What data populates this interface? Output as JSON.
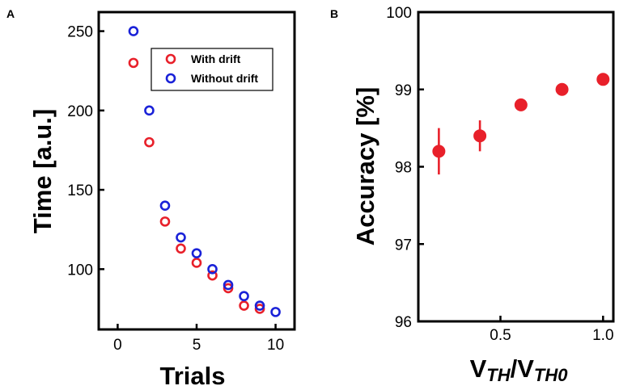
{
  "chart_data": [
    {
      "panel": "A",
      "type": "scatter",
      "title": "",
      "xlabel": "Trials",
      "ylabel": "Time [a.u.]",
      "xlim": [
        -1.2,
        11.2
      ],
      "ylim": [
        62,
        262
      ],
      "xticks": [
        0,
        5,
        10
      ],
      "xtick_labels": [
        "0",
        "5",
        "10"
      ],
      "yticks": [
        100,
        150,
        200,
        250
      ],
      "ytick_labels": [
        "100",
        "150",
        "200",
        "250"
      ],
      "grid": false,
      "legend_position": "top-right",
      "series": [
        {
          "name": "With drift",
          "color": "#e8202a",
          "marker": "open-circle",
          "x": [
            1,
            2,
            3,
            4,
            5,
            6,
            7,
            8,
            9
          ],
          "y": [
            230,
            180,
            130,
            113,
            104,
            96,
            88,
            77,
            75
          ]
        },
        {
          "name": "Without drift",
          "color": "#1a22d8",
          "marker": "open-circle",
          "x": [
            1,
            2,
            3,
            4,
            5,
            6,
            7,
            8,
            9,
            10
          ],
          "y": [
            250,
            200,
            140,
            120,
            110,
            100,
            90,
            83,
            77,
            73
          ]
        }
      ]
    },
    {
      "panel": "B",
      "type": "scatter",
      "title": "",
      "xlabel": "V_TH/V_TH0",
      "xlabel_parts": {
        "v1": "V",
        "sub1": "TH",
        "slash": "/V",
        "sub2": "TH0"
      },
      "ylabel": "Accuracy [%]",
      "xlim": [
        0.1,
        1.05
      ],
      "ylim": [
        96,
        100
      ],
      "xticks": [
        0.5,
        1.0
      ],
      "xtick_labels": [
        "0.5",
        "1.0"
      ],
      "yticks": [
        96,
        97,
        98,
        99,
        100
      ],
      "ytick_labels": [
        "96",
        "97",
        "98",
        "99",
        "100"
      ],
      "grid": false,
      "series": [
        {
          "name": "Accuracy",
          "color": "#e8202a",
          "marker": "filled-circle",
          "x": [
            0.2,
            0.4,
            0.6,
            0.8,
            1.0
          ],
          "y": [
            98.2,
            98.4,
            98.8,
            99.0,
            99.13
          ],
          "yerr": [
            0.3,
            0.2,
            0.08,
            0.05,
            0.05
          ]
        }
      ]
    }
  ]
}
